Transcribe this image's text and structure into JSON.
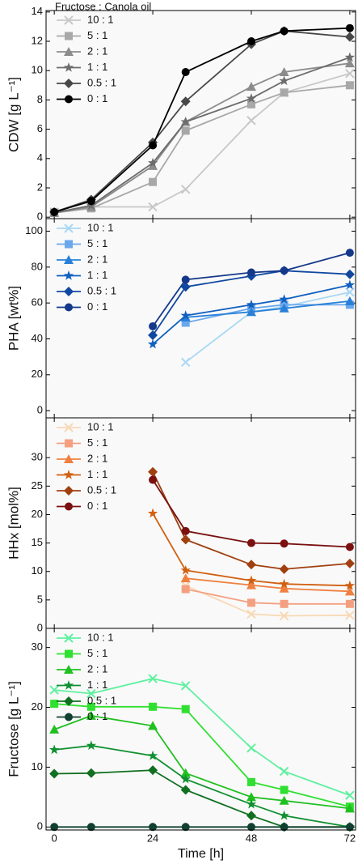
{
  "chart_data": [
    {
      "type": "line",
      "legend_title": "Fructose : Canola oil",
      "ylabel": "CDW [g L⁻¹]",
      "x": [
        0,
        9,
        24,
        32,
        48,
        56,
        72
      ],
      "xlim": [
        -2,
        73.4
      ],
      "xticks": [
        0,
        24,
        48,
        72
      ],
      "ylim": [
        -0.1,
        14.1
      ],
      "yticks": [
        0,
        2,
        4,
        6,
        8,
        10,
        12,
        14
      ],
      "series": [
        {
          "name": "10 : 1",
          "color": "#c8c8c8",
          "marker": "x",
          "values": [
            0.35,
            0.7,
            0.7,
            1.9,
            6.6,
            8.5,
            9.8
          ]
        },
        {
          "name": "5 : 1",
          "color": "#a8a8a8",
          "marker": "square",
          "values": [
            0.3,
            0.6,
            2.4,
            5.9,
            7.7,
            8.5,
            9.0
          ]
        },
        {
          "name": "2 : 1",
          "color": "#8c8c8c",
          "marker": "triangle",
          "values": [
            0.3,
            0.7,
            3.5,
            6.5,
            8.9,
            9.9,
            10.5
          ]
        },
        {
          "name": "1 : 1",
          "color": "#6c6c6c",
          "marker": "star",
          "values": [
            0.3,
            0.8,
            3.7,
            6.5,
            8.1,
            9.3,
            10.9
          ]
        },
        {
          "name": "0.5 : 1",
          "color": "#484848",
          "marker": "diamond",
          "values": [
            0.35,
            1.2,
            5.1,
            7.9,
            11.8,
            12.7,
            12.3
          ]
        },
        {
          "name": "0 : 1",
          "color": "#000000",
          "marker": "circle",
          "values": [
            0.35,
            1.1,
            4.9,
            9.9,
            12.0,
            12.7,
            12.9
          ]
        }
      ]
    },
    {
      "type": "line",
      "ylabel": "PHA [wt%]",
      "x": [
        0,
        9,
        24,
        32,
        48,
        56,
        72
      ],
      "xlim": [
        -2,
        73.4
      ],
      "xticks": [
        0,
        24,
        48,
        72
      ],
      "ylim": [
        -4,
        107
      ],
      "yticks": [
        0,
        20,
        40,
        60,
        80,
        100
      ],
      "series": [
        {
          "name": "10 : 1",
          "color": "#a8d8f4",
          "marker": "x",
          "values": [
            null,
            null,
            null,
            27,
            55,
            58,
            66
          ]
        },
        {
          "name": "5 : 1",
          "color": "#6aa8ec",
          "marker": "square",
          "values": [
            null,
            null,
            null,
            49,
            57,
            59,
            59
          ]
        },
        {
          "name": "2 : 1",
          "color": "#2a80d8",
          "marker": "triangle",
          "values": [
            null,
            null,
            null,
            52,
            55,
            57,
            61
          ]
        },
        {
          "name": "1 : 1",
          "color": "#1060c0",
          "marker": "star",
          "values": [
            null,
            null,
            37,
            53,
            59,
            62,
            70
          ]
        },
        {
          "name": "0.5 : 1",
          "color": "#1048a0",
          "marker": "diamond",
          "values": [
            null,
            null,
            42,
            69,
            75,
            78,
            76
          ]
        },
        {
          "name": "0 : 1",
          "color": "#14388a",
          "marker": "circle",
          "values": [
            null,
            null,
            47,
            73,
            77,
            78,
            88
          ]
        }
      ]
    },
    {
      "type": "line",
      "ylabel": "HHx [mol%]",
      "x": [
        0,
        9,
        24,
        32,
        48,
        56,
        72
      ],
      "xlim": [
        -2,
        73.4
      ],
      "xticks": [
        0,
        24,
        48,
        72
      ],
      "ylim": [
        0,
        37
      ],
      "yticks": [
        0,
        5,
        10,
        15,
        20,
        25,
        30
      ],
      "series": [
        {
          "name": "10 : 1",
          "color": "#f8d8b4",
          "marker": "x",
          "values": [
            null,
            null,
            null,
            7.5,
            2.5,
            2.2,
            2.3
          ]
        },
        {
          "name": "5 : 1",
          "color": "#f4a080",
          "marker": "square",
          "values": [
            null,
            null,
            null,
            6.9,
            4.5,
            4.3,
            4.3
          ]
        },
        {
          "name": "2 : 1",
          "color": "#f08040",
          "marker": "triangle",
          "values": [
            null,
            null,
            null,
            8.8,
            7.6,
            7.0,
            6.5
          ]
        },
        {
          "name": "1 : 1",
          "color": "#d06010",
          "marker": "star",
          "values": [
            null,
            null,
            20.2,
            10.2,
            8.4,
            7.8,
            7.5
          ]
        },
        {
          "name": "0.5 : 1",
          "color": "#a04010",
          "marker": "diamond",
          "values": [
            null,
            null,
            27.5,
            15.6,
            11.2,
            10.4,
            11.4
          ]
        },
        {
          "name": "0 : 1",
          "color": "#7a1010",
          "marker": "circle",
          "values": [
            null,
            null,
            26.1,
            17.1,
            15.0,
            14.9,
            14.3
          ]
        }
      ]
    },
    {
      "type": "line",
      "ylabel": "Fructose [g L⁻¹]",
      "xlabel": "Time [h]",
      "x": [
        0,
        9,
        24,
        32,
        48,
        56,
        72
      ],
      "xlim": [
        -2,
        73.4
      ],
      "xticks": [
        0,
        24,
        48,
        72
      ],
      "ylim": [
        -0.5,
        33.2
      ],
      "yticks": [
        0,
        10,
        20,
        30
      ],
      "series": [
        {
          "name": "10 : 1",
          "color": "#60f0a0",
          "marker": "x",
          "values": [
            22.9,
            22.3,
            24.8,
            23.6,
            13.2,
            9.3,
            5.3
          ]
        },
        {
          "name": "5 : 1",
          "color": "#30e030",
          "marker": "square",
          "values": [
            20.6,
            20.1,
            20.1,
            19.7,
            7.5,
            6.2,
            3.4
          ]
        },
        {
          "name": "2 : 1",
          "color": "#20c020",
          "marker": "triangle",
          "values": [
            16.3,
            18.6,
            16.9,
            9.0,
            5.0,
            4.4,
            3.1
          ]
        },
        {
          "name": "1 : 1",
          "color": "#109030",
          "marker": "star",
          "values": [
            12.9,
            13.6,
            11.9,
            8.0,
            3.8,
            1.9,
            0
          ]
        },
        {
          "name": "0.5 : 1",
          "color": "#107020",
          "marker": "diamond",
          "values": [
            8.9,
            9.0,
            9.5,
            6.2,
            1.9,
            0,
            0
          ]
        },
        {
          "name": "0 : 1",
          "color": "#104030",
          "marker": "circle",
          "values": [
            0,
            0,
            0,
            0,
            0,
            0,
            0
          ]
        }
      ]
    }
  ]
}
